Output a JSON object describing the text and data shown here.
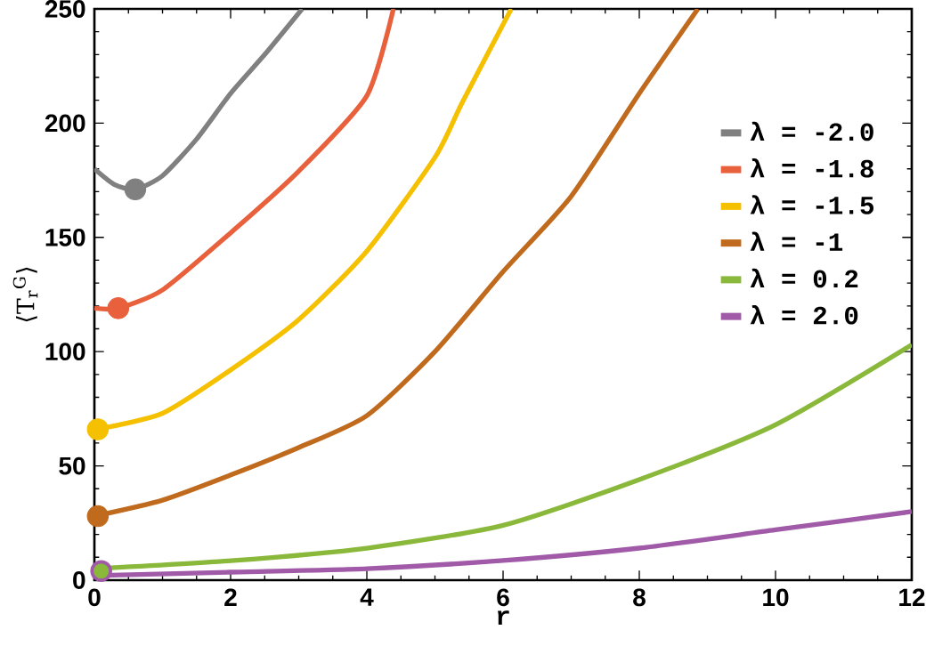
{
  "chart_data": {
    "type": "line",
    "xlabel": "r",
    "ylabel": "⟨T$_{r}$$^{G}$⟩",
    "xlim": [
      0,
      12
    ],
    "ylim": [
      0,
      250
    ],
    "xticks": [
      0,
      2,
      4,
      6,
      8,
      10,
      12
    ],
    "yticks": [
      0,
      50,
      100,
      150,
      200,
      250
    ],
    "grid": false,
    "legend": "top right",
    "line_style": "solid",
    "series": [
      {
        "name": "λ = -2.0",
        "color": "#808080",
        "x": [
          0,
          0.3,
          0.6,
          1,
          1.5,
          2,
          2.5,
          3.05
        ],
        "values": [
          180,
          173,
          171,
          177,
          193,
          213,
          230,
          250
        ]
      },
      {
        "name": "λ = -1.8",
        "color": "#e8603c",
        "x": [
          0,
          0.35,
          1,
          2,
          3,
          4,
          4.39
        ],
        "values": [
          119,
          119,
          127,
          152,
          179,
          212,
          250
        ]
      },
      {
        "name": "λ = -1.5",
        "color": "#f5c000",
        "x": [
          0,
          0.05,
          1,
          2,
          3,
          4,
          5,
          5.4,
          6.12
        ],
        "values": [
          66,
          66,
          73,
          92,
          114,
          144,
          185,
          209,
          250
        ]
      },
      {
        "name": "λ = -1",
        "color": "#c06a1e",
        "x": [
          0,
          1,
          2,
          3,
          4,
          5,
          6,
          7,
          8,
          8.86
        ],
        "values": [
          28,
          35,
          46,
          58,
          72,
          100,
          135,
          168,
          213,
          250
        ]
      },
      {
        "name": "λ = 0.2",
        "color": "#8ab83a",
        "x": [
          0,
          2,
          4,
          6,
          8,
          10,
          12
        ],
        "values": [
          5,
          8.5,
          14,
          24,
          44,
          68,
          103
        ]
      },
      {
        "name": "λ = 2.0",
        "color": "#a05aa8",
        "x": [
          0,
          2,
          4,
          6,
          8,
          10,
          12
        ],
        "values": [
          2,
          3.5,
          5,
          8.6,
          14,
          22,
          30
        ]
      },
      {
        "type": "scatter",
        "color": "#808080",
        "x": [
          0.6
        ],
        "values": [
          171
        ]
      },
      {
        "type": "scatter",
        "color": "#e8603c",
        "x": [
          0.35
        ],
        "values": [
          119
        ]
      },
      {
        "type": "scatter",
        "color": "#f5c000",
        "x": [
          0.05
        ],
        "values": [
          66
        ]
      },
      {
        "type": "scatter",
        "color": "#c06a1e",
        "x": [
          0.05
        ],
        "values": [
          28
        ]
      },
      {
        "type": "scatter",
        "color": "#a05aa8",
        "x": [
          0.1
        ],
        "values": [
          4
        ]
      },
      {
        "type": "scatter",
        "color": "#8ab83a",
        "x": [
          0.1
        ],
        "values": [
          4
        ]
      }
    ]
  }
}
